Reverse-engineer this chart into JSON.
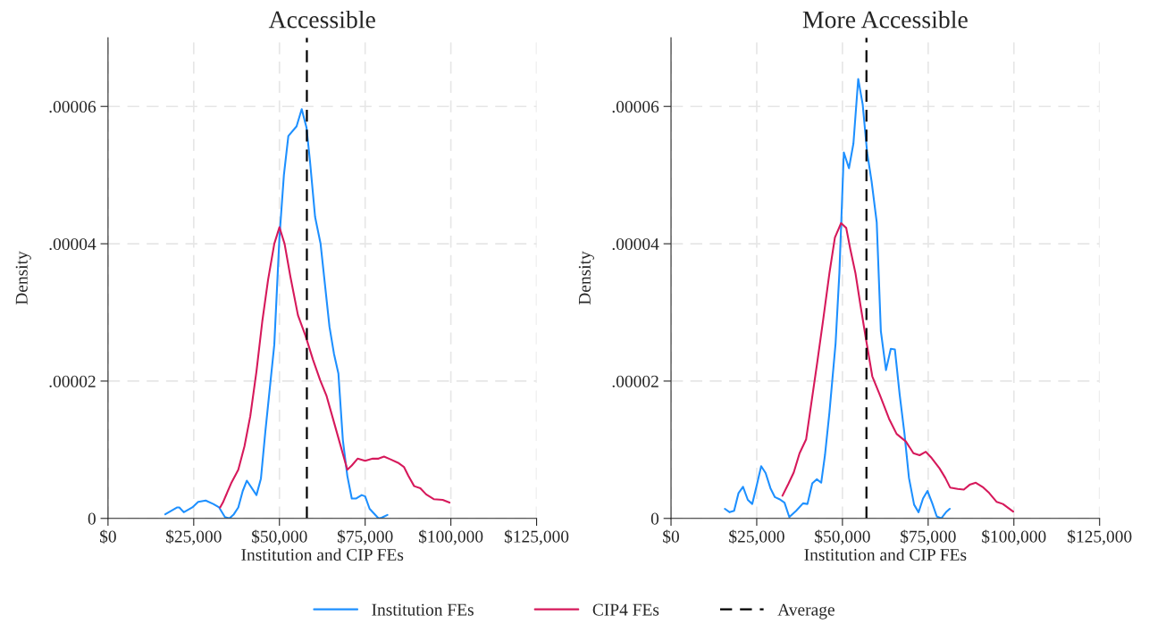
{
  "chart_data": [
    {
      "type": "line",
      "title": "Accessible",
      "xlabel": "Institution and CIP FEs",
      "ylabel": "Density",
      "xlim": [
        0,
        125000
      ],
      "ylim": [
        0,
        7e-05
      ],
      "xticks": [
        {
          "value": 0,
          "label": "$0"
        },
        {
          "value": 25000,
          "label": "$25,000"
        },
        {
          "value": 50000,
          "label": "$50,000"
        },
        {
          "value": 75000,
          "label": "$75,000"
        },
        {
          "value": 100000,
          "label": "$100,000"
        },
        {
          "value": 125000,
          "label": "$125,000"
        }
      ],
      "yticks": [
        {
          "value": 0,
          "label": "0"
        },
        {
          "value": 2e-05,
          "label": ".00002"
        },
        {
          "value": 4e-05,
          "label": ".00004"
        },
        {
          "value": 6e-05,
          "label": ".00006"
        }
      ],
      "grid": true,
      "legend": "bottom",
      "ref_lines": [
        {
          "axis": "x",
          "value": 58000,
          "label": "Average",
          "color": "#000000",
          "line_style": "dashed"
        }
      ],
      "series": [
        {
          "name": "Institution FEs",
          "color": "#1e90ff",
          "x": [
            16700,
            20200,
            20800,
            22100,
            24600,
            26300,
            28500,
            30700,
            32400,
            34100,
            35400,
            36700,
            38000,
            39300,
            40500,
            43300,
            44600,
            45900,
            48500,
            50000,
            51300,
            52600,
            55000,
            56500,
            57900,
            58900,
            60400,
            62000,
            64600,
            65900,
            67200,
            68500,
            69800,
            71100,
            72400,
            74000,
            75000,
            76300,
            78900,
            79800,
            81500
          ],
          "values": [
            6e-07,
            1.6e-06,
            1.6e-06,
            9e-07,
            1.6e-06,
            2.4e-06,
            2.6e-06,
            2.1e-06,
            1.6e-06,
            2e-07,
            0,
            6e-07,
            1.6e-06,
            4e-06,
            5.5e-06,
            3.4e-06,
            5.8e-06,
            1.27e-05,
            2.53e-05,
            4.09e-05,
            5e-05,
            5.57e-05,
            5.71e-05,
            5.96e-05,
            5.69e-05,
            5.21e-05,
            4.39e-05,
            4e-05,
            2.79e-05,
            2.4e-05,
            2.11e-05,
            1.14e-05,
            6.2e-06,
            2.9e-06,
            2.9e-06,
            3.4e-06,
            3.2e-06,
            1.4e-06,
            0,
            1e-07,
            5e-07
          ]
        },
        {
          "name": "CIP4 FEs",
          "color": "#d6195b",
          "x": [
            32700,
            33500,
            35900,
            38000,
            39800,
            41500,
            43300,
            45000,
            46700,
            48500,
            50000,
            51500,
            53200,
            55400,
            57600,
            59800,
            61900,
            63700,
            65400,
            67600,
            69800,
            71100,
            72800,
            75000,
            77200,
            78900,
            80500,
            82400,
            84600,
            86300,
            87600,
            89300,
            91100,
            92800,
            95000,
            97600,
            99600
          ],
          "values": [
            1.6e-06,
            2.3e-06,
            5.1e-06,
            7.1e-06,
            1.05e-05,
            1.49e-05,
            2.14e-05,
            2.87e-05,
            3.48e-05,
            4e-05,
            4.24e-05,
            4e-05,
            3.52e-05,
            2.96e-05,
            2.66e-05,
            2.31e-05,
            2.01e-05,
            1.79e-05,
            1.49e-05,
            1.1e-05,
            7.1e-06,
            7.7e-06,
            8.7e-06,
            8.4e-06,
            8.7e-06,
            8.7e-06,
            9e-06,
            8.6e-06,
            8.1e-06,
            7.5e-06,
            6.2e-06,
            4.7e-06,
            4.4e-06,
            3.5e-06,
            2.8e-06,
            2.7e-06,
            2.3e-06
          ]
        }
      ]
    },
    {
      "type": "line",
      "title": "More Accessible",
      "xlabel": "Institution and CIP FEs",
      "ylabel": "Density",
      "xlim": [
        0,
        125000
      ],
      "ylim": [
        0,
        7e-05
      ],
      "xticks": [
        {
          "value": 0,
          "label": "$0"
        },
        {
          "value": 25000,
          "label": "$25,000"
        },
        {
          "value": 50000,
          "label": "$50,000"
        },
        {
          "value": 75000,
          "label": "$75,000"
        },
        {
          "value": 100000,
          "label": "$100,000"
        },
        {
          "value": 125000,
          "label": "$125,000"
        }
      ],
      "yticks": [
        {
          "value": 0,
          "label": "0"
        },
        {
          "value": 2e-05,
          "label": ".00002"
        },
        {
          "value": 4e-05,
          "label": ".00004"
        },
        {
          "value": 6e-05,
          "label": ".00006"
        }
      ],
      "grid": true,
      "ref_lines": [
        {
          "axis": "x",
          "value": 57000,
          "color": "#000000",
          "line_style": "dashed"
        }
      ],
      "series": [
        {
          "color": "#1e90ff",
          "x": [
            15700,
            17100,
            18400,
            19700,
            21000,
            22400,
            23700,
            25000,
            26300,
            27600,
            29000,
            30300,
            31600,
            33100,
            34500,
            36500,
            38500,
            39800,
            41200,
            42500,
            43800,
            44900,
            46200,
            48000,
            49100,
            50400,
            51900,
            53200,
            54600,
            55900,
            57200,
            58500,
            60000,
            61200,
            62700,
            64100,
            65300,
            66700,
            68100,
            69400,
            70900,
            72200,
            73500,
            74800,
            76200,
            77500,
            78800,
            80200,
            81300
          ],
          "values": [
            1.4e-06,
            9e-07,
            1.1e-06,
            3.7e-06,
            4.6e-06,
            2.7e-06,
            2.1e-06,
            4.8e-06,
            7.6e-06,
            6.6e-06,
            4.4e-06,
            3.1e-06,
            2.8e-06,
            2.3e-06,
            2e-07,
            1.1e-06,
            2.2e-06,
            2.1e-06,
            5.1e-06,
            5.7e-06,
            5.2e-06,
            9.2e-06,
            1.54e-05,
            2.55e-05,
            3.57e-05,
            5.33e-05,
            5.1e-05,
            5.46e-05,
            6.4e-05,
            6.03e-05,
            5.33e-05,
            4.91e-05,
            4.31e-05,
            2.73e-05,
            2.16e-05,
            2.47e-05,
            2.46e-05,
            1.8e-05,
            1.23e-05,
            5.9e-06,
            2e-06,
            9e-07,
            2.9e-06,
            4e-06,
            2.2e-06,
            3e-07,
            0,
            9e-07,
            1.4e-06
          ]
        },
        {
          "color": "#d6195b",
          "x": [
            32500,
            34300,
            35800,
            37500,
            39400,
            40900,
            42700,
            44400,
            46200,
            47800,
            49600,
            51100,
            52300,
            53800,
            55200,
            56900,
            58700,
            60900,
            63600,
            65800,
            68500,
            70700,
            72500,
            74300,
            76000,
            78300,
            80000,
            81400,
            83600,
            85400,
            87100,
            88900,
            91100,
            92800,
            95000,
            96800,
            99800
          ],
          "values": [
            3.3e-06,
            5.1e-06,
            6.7e-06,
            9.5e-06,
            1.15e-05,
            1.67e-05,
            2.29e-05,
            2.9e-05,
            3.57e-05,
            4.09e-05,
            4.3e-05,
            4.23e-05,
            3.92e-05,
            3.57e-05,
            3.12e-05,
            2.6e-05,
            2.07e-05,
            1.8e-05,
            1.45e-05,
            1.23e-05,
            1.12e-05,
            9.5e-06,
            9.2e-06,
            9.7e-06,
            8.8e-06,
            7.3e-06,
            5.9e-06,
            4.5e-06,
            4.3e-06,
            4.2e-06,
            4.9e-06,
            5.2e-06,
            4.5e-06,
            3.7e-06,
            2.4e-06,
            2.1e-06,
            1e-06
          ]
        }
      ]
    }
  ]
}
